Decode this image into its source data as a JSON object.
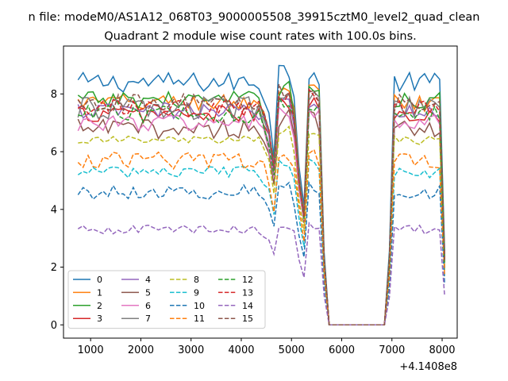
{
  "suptitle": "n file: modeM0/AS1A12_068T03_9000005508_39915cztM0_level2_quad_clean",
  "chart_data": {
    "type": "line",
    "title": "Quadrant 2 module wise count rates with 100.0s bins.",
    "xlabel": "",
    "ylabel": "",
    "x_offset_label": "+4.1408e8",
    "xlim": [
      460,
      8300
    ],
    "ylim": [
      -0.46,
      9.66
    ],
    "x_ticks": [
      1000,
      2000,
      3000,
      4000,
      5000,
      6000,
      7000,
      8000
    ],
    "x_tick_labels": [
      "1000",
      "2000",
      "3000",
      "4000",
      "5000",
      "6000",
      "7000",
      "8000"
    ],
    "y_ticks": [
      0,
      2,
      4,
      6,
      8
    ],
    "y_tick_labels": [
      "0",
      "2",
      "4",
      "6",
      "8"
    ],
    "grid": false,
    "legend_position": "lower-left",
    "legend_columns": 4,
    "x_range": [
      750,
      8050
    ],
    "bin_seconds": 100,
    "series": [
      {
        "name": "0",
        "color": "#1f77b4",
        "dash": "solid",
        "level": 8.4,
        "noise": 0.35
      },
      {
        "name": "1",
        "color": "#ff7f0e",
        "dash": "solid",
        "level": 7.7,
        "noise": 0.3
      },
      {
        "name": "2",
        "color": "#2ca02c",
        "dash": "solid",
        "level": 7.8,
        "noise": 0.3
      },
      {
        "name": "3",
        "color": "#d62728",
        "dash": "solid",
        "level": 7.3,
        "noise": 0.3
      },
      {
        "name": "4",
        "color": "#9467bd",
        "dash": "solid",
        "level": 7.4,
        "noise": 0.3
      },
      {
        "name": "5",
        "color": "#8c564b",
        "dash": "solid",
        "level": 6.8,
        "noise": 0.35
      },
      {
        "name": "6",
        "color": "#e377c2",
        "dash": "solid",
        "level": 7.0,
        "noise": 0.3
      },
      {
        "name": "7",
        "color": "#7f7f7f",
        "dash": "solid",
        "level": 7.5,
        "noise": 0.4
      },
      {
        "name": "8",
        "color": "#bcbd22",
        "dash": "dashed",
        "level": 6.4,
        "noise": 0.15
      },
      {
        "name": "9",
        "color": "#17becf",
        "dash": "dashed",
        "level": 5.3,
        "noise": 0.2
      },
      {
        "name": "10",
        "color": "#1f77b4",
        "dash": "dashed",
        "level": 4.6,
        "noise": 0.25
      },
      {
        "name": "11",
        "color": "#ff7f0e",
        "dash": "dashed",
        "level": 5.7,
        "noise": 0.3
      },
      {
        "name": "12",
        "color": "#2ca02c",
        "dash": "dashed",
        "level": 7.3,
        "noise": 0.3
      },
      {
        "name": "13",
        "color": "#d62728",
        "dash": "dashed",
        "level": 7.5,
        "noise": 0.3
      },
      {
        "name": "14",
        "color": "#9467bd",
        "dash": "dashed",
        "level": 3.3,
        "noise": 0.15
      },
      {
        "name": "15",
        "color": "#8c564b",
        "dash": "dashed",
        "level": 7.7,
        "noise": 0.3
      }
    ]
  }
}
